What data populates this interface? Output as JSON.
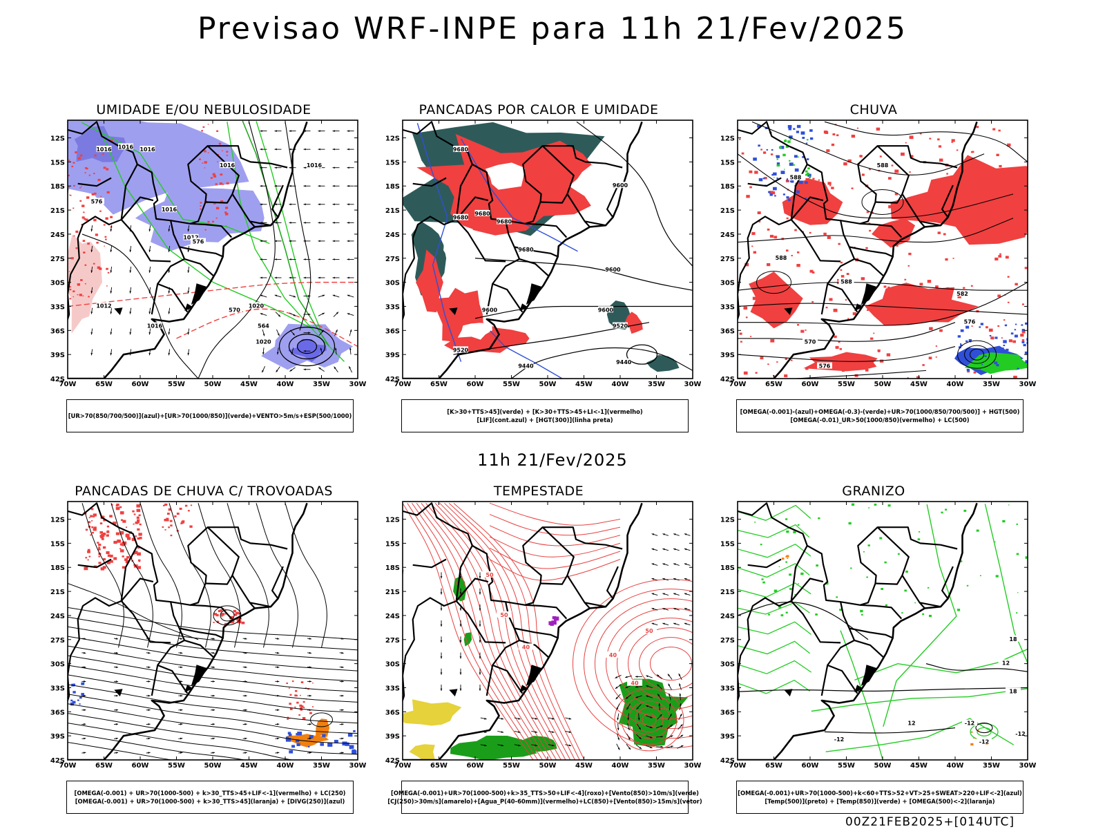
{
  "header": {
    "title": "Previsao WRF-INPE  para 11h 21/Fev/2025"
  },
  "mid_title": "11h 21/Fev/2025",
  "footer": "00Z21FEB2025+[014UTC]",
  "axes": {
    "lat_labels": [
      "12S",
      "15S",
      "18S",
      "21S",
      "24S",
      "27S",
      "30S",
      "33S",
      "36S",
      "39S",
      "42S"
    ],
    "lon_labels": [
      "70W",
      "65W",
      "60W",
      "55W",
      "50W",
      "45W",
      "40W",
      "35W",
      "30W"
    ]
  },
  "colors": {
    "blue": "#9f9ff0",
    "green": "#22cc22",
    "red": "#f04040",
    "teal": "#2e5b5a",
    "orange": "#f08010",
    "yellow": "#e6d23a",
    "darkgreen": "#1a9e1a",
    "purple": "#a020c0"
  },
  "panels": [
    {
      "title": "UMIDADE E/OU NEBULOSIDADE",
      "legend": [
        "[UR>70(850/700/500)](azul)+[UR>70(1000/850)](verde)+VENTO>5m/s+ESP(500/1000)"
      ],
      "contour_labels": [
        "1016",
        "1016",
        "1016",
        "1016",
        "1016",
        "1012",
        "1012",
        "1020",
        "1020",
        "1016",
        "1016",
        "576",
        "576",
        "570",
        "564"
      ]
    },
    {
      "title": "PANCADAS POR CALOR E UMIDADE",
      "legend": [
        "[K>30+TTS>45](verde) + [K>30+TTS>45+LI<-1](vermelho)",
        "[LIF](cont.azul) + [HGT(300)](linha preta)"
      ],
      "contour_labels": [
        "9680",
        "9680",
        "9680",
        "9680",
        "9600",
        "9600",
        "9680",
        "9600",
        "9520",
        "9520",
        "9440",
        "9440",
        "9600"
      ]
    },
    {
      "title": "CHUVA",
      "legend": [
        "[OMEGA(-0.001)-(azul)+OMEGA(-0.3)-(verde)+UR>70(1000/850/700/500)] + HGT(500)",
        "[OMEGA(-0.01)_UR>50(1000/850)(vermelho) + LC(500)"
      ],
      "contour_labels": [
        "588",
        "588",
        "588",
        "588",
        "582",
        "576",
        "570",
        "576"
      ]
    },
    {
      "title": "PANCADAS DE CHUVA C/ TROVOADAS",
      "legend": [
        "[OMEGA(-0.001) + UR>70(1000-500) + k>30_TTS>45+LIF<-1](vermelho) + LC(250)",
        "[OMEGA(-0.001) + UR>70(1000-500) + k>30_TTS>45](laranja) + [DIVG(250)](azul)"
      ],
      "contour_labels": []
    },
    {
      "title": "TEMPESTADE",
      "legend": [
        "[OMEGA(-0.001)+UR>70(1000-500)+k>35_TTS>50+LIF<-4](roxo)+[Vento(850)>10m/s](verde)",
        "[CJ(250)>30m/s](amarelo)+[Agua_P(40-60mm)](vermelho)+LC(850)+[Vento(850)>15m/s](vetor)"
      ],
      "contour_labels": [
        "50",
        "50",
        "40",
        "40",
        "40",
        "50"
      ]
    },
    {
      "title": "GRANIZO",
      "legend": [
        "[OMEGA(-0.001)+UR>70(1000-500)+k<60+TTS>52+VT>25+SWEAT>220+LIF<-2](azul)",
        "[Temp(500)](preto) + [Temp(850)](verde) + [OMEGA(500)<-2](laranja)"
      ],
      "contour_labels": [
        "-12",
        "-12",
        "-12",
        "-12",
        "18",
        "12",
        "12",
        "18"
      ]
    }
  ]
}
